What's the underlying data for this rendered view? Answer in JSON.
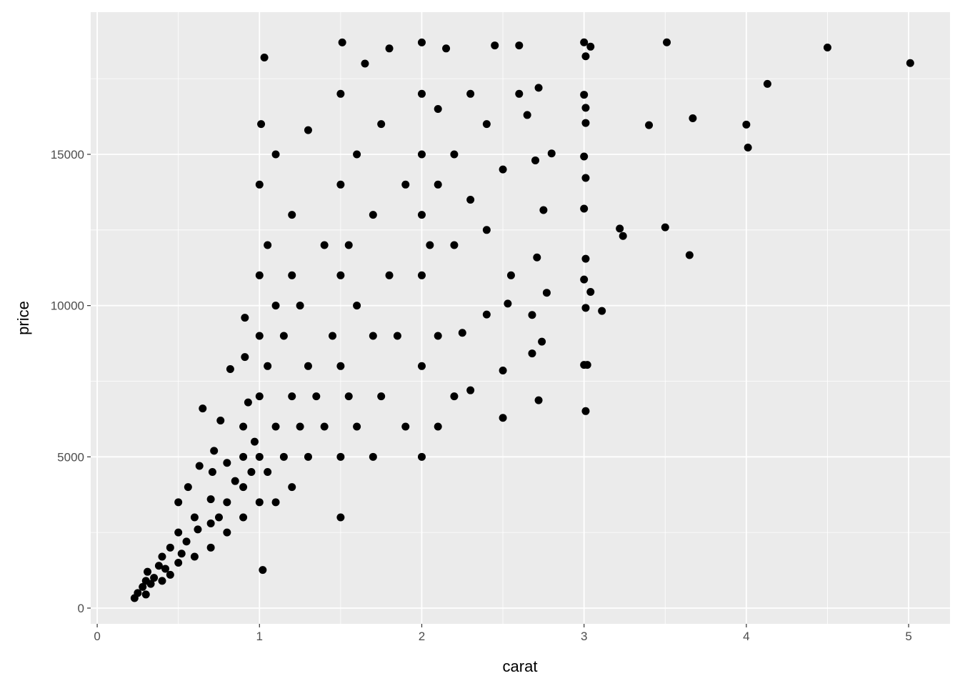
{
  "chart_data": {
    "type": "scatter",
    "title": "",
    "xlabel": "carat",
    "ylabel": "price",
    "xlim": [
      -0.04,
      5.255
    ],
    "ylim": [
      -520,
      19700
    ],
    "x_ticks": [
      0,
      1,
      2,
      3,
      4,
      5
    ],
    "x_tick_labels": [
      "0",
      "1",
      "2",
      "3",
      "4",
      "5"
    ],
    "y_ticks": [
      0,
      5000,
      10000,
      15000
    ],
    "y_tick_labels": [
      "0",
      "5000",
      "10000",
      "15000"
    ],
    "grid": true,
    "background": "#EBEBEB",
    "point_color": "#000000",
    "points": [
      [
        0.23,
        330
      ],
      [
        0.25,
        500
      ],
      [
        0.28,
        700
      ],
      [
        0.3,
        450
      ],
      [
        0.3,
        900
      ],
      [
        0.31,
        1200
      ],
      [
        0.33,
        800
      ],
      [
        0.35,
        1000
      ],
      [
        0.38,
        1400
      ],
      [
        0.4,
        900
      ],
      [
        0.4,
        1700
      ],
      [
        0.42,
        1300
      ],
      [
        0.45,
        1100
      ],
      [
        0.45,
        2000
      ],
      [
        0.5,
        1500
      ],
      [
        0.5,
        2500
      ],
      [
        0.5,
        3500
      ],
      [
        0.52,
        1800
      ],
      [
        0.55,
        2200
      ],
      [
        0.56,
        4000
      ],
      [
        0.6,
        1700
      ],
      [
        0.6,
        3000
      ],
      [
        0.62,
        2600
      ],
      [
        0.63,
        4700
      ],
      [
        0.65,
        6600
      ],
      [
        0.7,
        2000
      ],
      [
        0.7,
        2800
      ],
      [
        0.7,
        3600
      ],
      [
        0.71,
        4500
      ],
      [
        0.72,
        5200
      ],
      [
        0.75,
        3000
      ],
      [
        0.76,
        6200
      ],
      [
        0.8,
        2500
      ],
      [
        0.8,
        3500
      ],
      [
        0.8,
        4800
      ],
      [
        0.82,
        7900
      ],
      [
        0.85,
        4200
      ],
      [
        0.9,
        3000
      ],
      [
        0.9,
        4000
      ],
      [
        0.9,
        5000
      ],
      [
        0.9,
        6000
      ],
      [
        0.91,
        9600
      ],
      [
        0.91,
        8300
      ],
      [
        0.93,
        6800
      ],
      [
        0.95,
        4500
      ],
      [
        0.97,
        5500
      ],
      [
        1.0,
        3500
      ],
      [
        1.0,
        5000
      ],
      [
        1.0,
        7000
      ],
      [
        1.0,
        9000
      ],
      [
        1.0,
        11000
      ],
      [
        1.0,
        14000
      ],
      [
        1.01,
        16000
      ],
      [
        1.02,
        1260
      ],
      [
        1.03,
        18200
      ],
      [
        1.05,
        4500
      ],
      [
        1.05,
        8000
      ],
      [
        1.05,
        12000
      ],
      [
        1.1,
        3500
      ],
      [
        1.1,
        6000
      ],
      [
        1.1,
        10000
      ],
      [
        1.1,
        15000
      ],
      [
        1.15,
        5000
      ],
      [
        1.15,
        9000
      ],
      [
        1.2,
        4000
      ],
      [
        1.2,
        7000
      ],
      [
        1.2,
        11000
      ],
      [
        1.2,
        13000
      ],
      [
        1.25,
        6000
      ],
      [
        1.25,
        10000
      ],
      [
        1.3,
        5000
      ],
      [
        1.3,
        8000
      ],
      [
        1.3,
        15800
      ],
      [
        1.35,
        7000
      ],
      [
        1.4,
        6000
      ],
      [
        1.4,
        12000
      ],
      [
        1.45,
        9000
      ],
      [
        1.5,
        3000
      ],
      [
        1.5,
        5000
      ],
      [
        1.5,
        8000
      ],
      [
        1.5,
        11000
      ],
      [
        1.5,
        14000
      ],
      [
        1.5,
        17000
      ],
      [
        1.51,
        18700
      ],
      [
        1.55,
        7000
      ],
      [
        1.55,
        12000
      ],
      [
        1.6,
        6000
      ],
      [
        1.6,
        10000
      ],
      [
        1.6,
        15000
      ],
      [
        1.65,
        18000
      ],
      [
        1.7,
        5000
      ],
      [
        1.7,
        9000
      ],
      [
        1.7,
        13000
      ],
      [
        1.75,
        7000
      ],
      [
        1.75,
        16000
      ],
      [
        1.8,
        11000
      ],
      [
        1.8,
        18500
      ],
      [
        1.85,
        9000
      ],
      [
        1.9,
        14000
      ],
      [
        1.9,
        6000
      ],
      [
        2.0,
        5000
      ],
      [
        2.0,
        8000
      ],
      [
        2.0,
        11000
      ],
      [
        2.0,
        13000
      ],
      [
        2.0,
        15000
      ],
      [
        2.0,
        17000
      ],
      [
        2.0,
        18700
      ],
      [
        2.05,
        12000
      ],
      [
        2.1,
        6000
      ],
      [
        2.1,
        9000
      ],
      [
        2.1,
        14000
      ],
      [
        2.1,
        16500
      ],
      [
        2.15,
        18500
      ],
      [
        2.2,
        7000
      ],
      [
        2.2,
        12000
      ],
      [
        2.2,
        15000
      ],
      [
        2.25,
        9100
      ],
      [
        2.3,
        7200
      ],
      [
        2.3,
        13500
      ],
      [
        2.3,
        17000
      ],
      [
        2.4,
        12500
      ],
      [
        2.4,
        16000
      ],
      [
        2.45,
        18600
      ],
      [
        2.5,
        14500
      ],
      [
        2.55,
        11000
      ],
      [
        2.6,
        17000
      ],
      [
        2.65,
        16300
      ],
      [
        2.7,
        14800
      ],
      [
        2.72,
        17200
      ],
      [
        2.6,
        18600
      ],
      [
        2.4,
        9705
      ],
      [
        2.5,
        6289
      ],
      [
        2.5,
        7854
      ],
      [
        2.53,
        10066
      ],
      [
        2.68,
        8419
      ],
      [
        2.68,
        9690
      ],
      [
        2.71,
        11593
      ],
      [
        2.72,
        6870
      ],
      [
        2.74,
        8807
      ],
      [
        2.75,
        13156
      ],
      [
        2.77,
        10424
      ],
      [
        2.8,
        15030
      ],
      [
        3.0,
        8040
      ],
      [
        3.02,
        8040
      ],
      [
        3.01,
        6512
      ],
      [
        3.01,
        9925
      ],
      [
        3.0,
        10863
      ],
      [
        3.01,
        11548
      ],
      [
        3.0,
        13203
      ],
      [
        3.01,
        14220
      ],
      [
        3.0,
        14928
      ],
      [
        3.01,
        16037
      ],
      [
        3.01,
        16538
      ],
      [
        3.0,
        16970
      ],
      [
        3.01,
        18242
      ],
      [
        3.04,
        18559
      ],
      [
        3.0,
        18701
      ],
      [
        3.04,
        10453
      ],
      [
        3.11,
        9823
      ],
      [
        3.22,
        12545
      ],
      [
        3.24,
        12300
      ],
      [
        3.4,
        15964
      ],
      [
        3.5,
        12587
      ],
      [
        3.51,
        18701
      ],
      [
        3.65,
        11668
      ],
      [
        3.67,
        16193
      ],
      [
        4.0,
        15984
      ],
      [
        4.01,
        15223
      ],
      [
        4.13,
        17329
      ],
      [
        4.5,
        18531
      ],
      [
        5.01,
        18018
      ]
    ]
  }
}
